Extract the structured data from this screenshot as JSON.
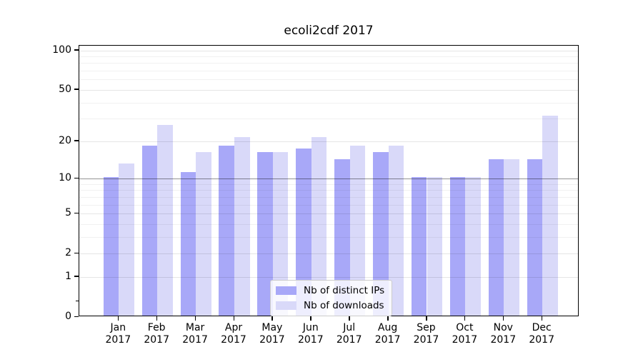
{
  "chart": {
    "title": "ecoli2cdf 2017",
    "legend": {
      "items": [
        {
          "label": "Nb of distinct IPs",
          "color": "#a8a8f8"
        },
        {
          "label": "Nb of downloads",
          "color": "#d9d9f9"
        }
      ]
    }
  },
  "chart_data": {
    "type": "bar",
    "title": "ecoli2cdf 2017",
    "categories": [
      "Jan 2017",
      "Feb 2017",
      "Mar 2017",
      "Apr 2017",
      "May 2017",
      "Jun 2017",
      "Jul 2017",
      "Aug 2017",
      "Sep 2017",
      "Oct 2017",
      "Nov 2017",
      "Dec 2017"
    ],
    "series": [
      {
        "name": "Nb of distinct IPs",
        "color": "#a8a8f8",
        "values": [
          10,
          18,
          11,
          18,
          16,
          17,
          14,
          16,
          10,
          10,
          14,
          14
        ]
      },
      {
        "name": "Nb of downloads",
        "color": "#d9d9f9",
        "values": [
          13,
          26,
          16,
          21,
          16,
          21,
          18,
          18,
          10,
          10,
          14,
          31
        ]
      }
    ],
    "ylabel": "",
    "xlabel": "",
    "yscale": "log1p",
    "ylim": [
      0,
      109
    ],
    "yticks": [
      0,
      1,
      2,
      5,
      10,
      20,
      50,
      100
    ],
    "minor_gridlines": [
      3,
      4,
      6,
      7,
      8,
      9,
      30,
      40,
      60,
      70,
      80,
      90
    ],
    "extra_minor_tick": 0.3,
    "emphasized_gridline": 10,
    "grid": true,
    "legend_position": "lower center"
  }
}
